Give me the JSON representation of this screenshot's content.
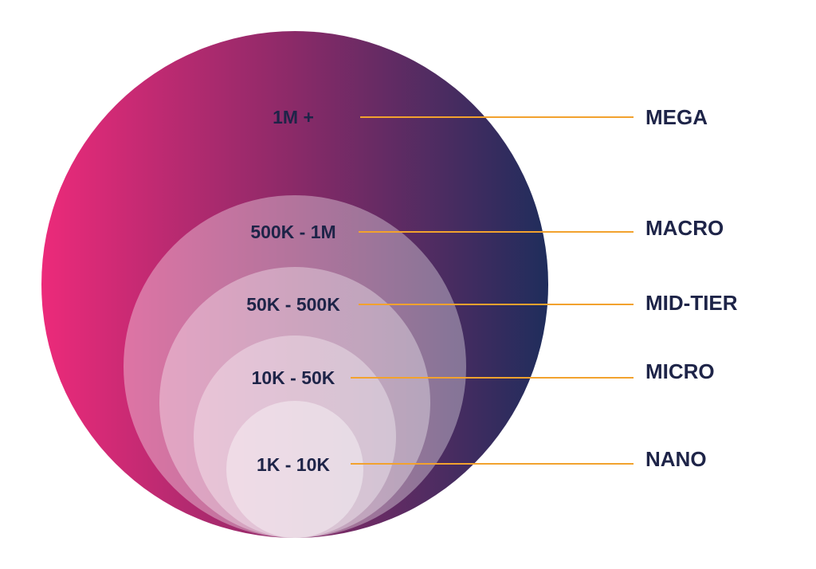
{
  "tiers": [
    {
      "range": "1M +",
      "label": "MEGA"
    },
    {
      "range": "500K - 1M",
      "label": "MACRO"
    },
    {
      "range": "50K - 500K",
      "label": "MID-TIER"
    },
    {
      "range": "10K - 50K",
      "label": "MICRO"
    },
    {
      "range": "1K - 10K",
      "label": "NANO"
    }
  ]
}
